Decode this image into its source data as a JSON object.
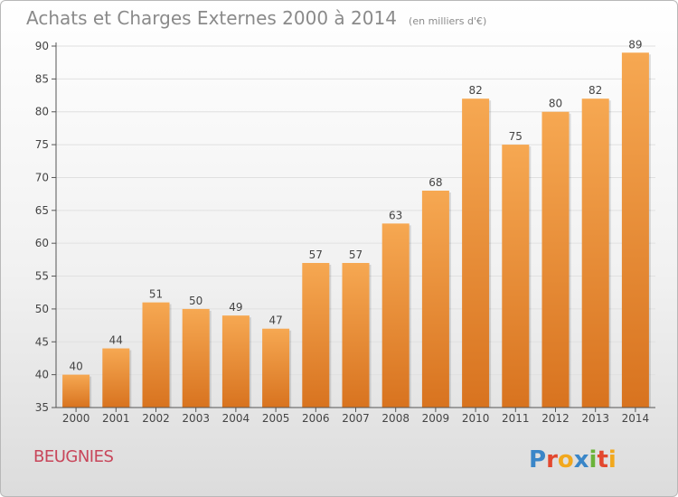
{
  "header": {
    "title": "Achats et Charges Externes 2000 à 2014",
    "subtitle": "(en milliers d'€)"
  },
  "footer": {
    "commune": "BEUGNIES",
    "logo_text": "Proxiti"
  },
  "colors": {
    "bar_top": "#f6a852",
    "bar_bottom": "#d8731f",
    "axis": "#555555",
    "grid": "#e0e0e0",
    "title": "#8a8a8a",
    "commune": "#c8465a"
  },
  "chart_data": {
    "type": "bar",
    "title": "Achats et Charges Externes 2000 à 2014",
    "subtitle": "(en milliers d'€)",
    "xlabel": "",
    "ylabel": "",
    "categories": [
      "2000",
      "2001",
      "2002",
      "2003",
      "2004",
      "2005",
      "2006",
      "2007",
      "2008",
      "2009",
      "2010",
      "2011",
      "2012",
      "2013",
      "2014"
    ],
    "values": [
      40,
      44,
      51,
      50,
      49,
      47,
      57,
      57,
      63,
      68,
      82,
      75,
      80,
      82,
      89
    ],
    "ylim": [
      35,
      90
    ],
    "yticks": [
      35,
      40,
      45,
      50,
      55,
      60,
      65,
      70,
      75,
      80,
      85,
      90
    ],
    "grid": "horizontal",
    "legend": "none"
  }
}
